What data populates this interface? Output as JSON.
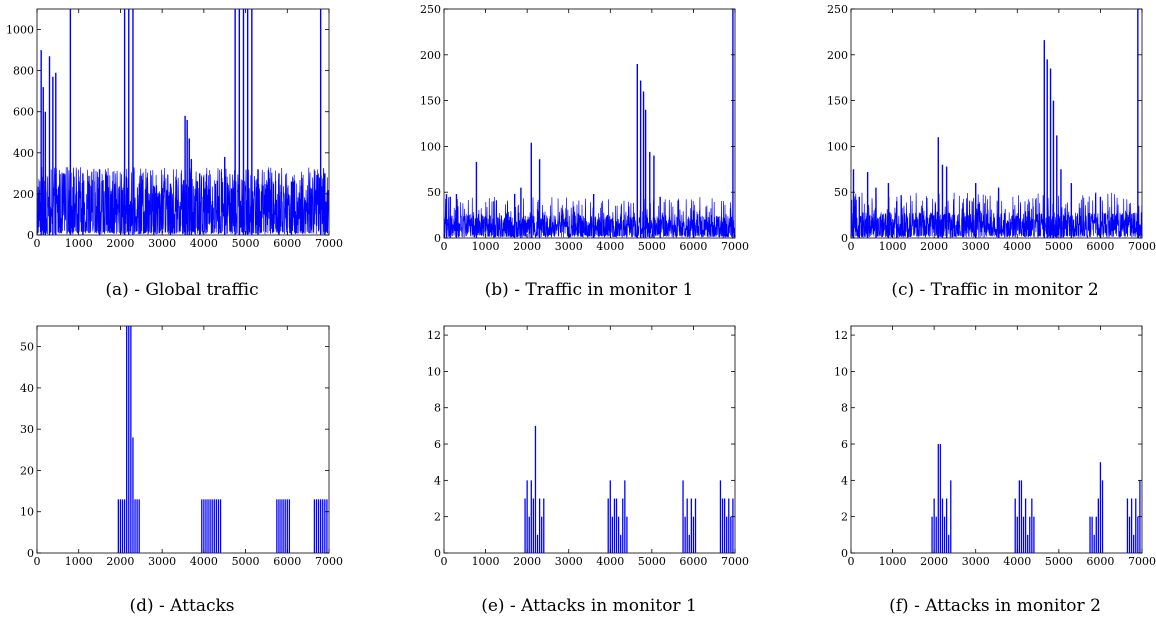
{
  "figure": {
    "colors": {
      "series": "#0000ff",
      "axis": "#000000",
      "background": "#ffffff"
    }
  },
  "chart_data": [
    {
      "id": "a",
      "caption": "(a) - Global traffic",
      "type": "line",
      "xlim": [
        0,
        7000
      ],
      "ylim": [
        0,
        1100
      ],
      "xticks": [
        0,
        1000,
        2000,
        3000,
        4000,
        5000,
        6000,
        7000
      ],
      "yticks": [
        0,
        200,
        400,
        600,
        800,
        1000
      ],
      "baseline": {
        "low": 20,
        "high": 290,
        "bursts_to": 330
      },
      "spikes": [
        [
          100,
          900
        ],
        [
          150,
          720
        ],
        [
          200,
          600
        ],
        [
          300,
          870
        ],
        [
          380,
          770
        ],
        [
          450,
          790
        ],
        [
          800,
          1100
        ],
        [
          1100,
          300
        ],
        [
          1500,
          320
        ],
        [
          2100,
          1100
        ],
        [
          2200,
          1100
        ],
        [
          2300,
          1100
        ],
        [
          2800,
          240
        ],
        [
          3200,
          250
        ],
        [
          3550,
          580
        ],
        [
          3600,
          560
        ],
        [
          3650,
          470
        ],
        [
          3700,
          370
        ],
        [
          3900,
          300
        ],
        [
          4500,
          380
        ],
        [
          4750,
          1100
        ],
        [
          4850,
          1100
        ],
        [
          4950,
          1100
        ],
        [
          5050,
          1100
        ],
        [
          5150,
          1100
        ],
        [
          5300,
          320
        ],
        [
          5800,
          300
        ],
        [
          6100,
          260
        ],
        [
          6800,
          1100
        ],
        [
          6900,
          300
        ]
      ],
      "grid": false,
      "legend": "none"
    },
    {
      "id": "b",
      "caption": "(b) - Traffic in monitor 1",
      "type": "line",
      "xlim": [
        0,
        7000
      ],
      "ylim": [
        0,
        250
      ],
      "xticks": [
        0,
        1000,
        2000,
        3000,
        4000,
        5000,
        6000,
        7000
      ],
      "yticks": [
        0,
        50,
        100,
        150,
        200,
        250
      ],
      "baseline": {
        "low": 3,
        "high": 25,
        "bursts_to": 45
      },
      "spikes": [
        [
          60,
          48
        ],
        [
          150,
          45
        ],
        [
          300,
          48
        ],
        [
          780,
          83
        ],
        [
          1200,
          40
        ],
        [
          1700,
          48
        ],
        [
          1850,
          55
        ],
        [
          2100,
          104
        ],
        [
          2300,
          86
        ],
        [
          3600,
          48
        ],
        [
          4650,
          190
        ],
        [
          4730,
          172
        ],
        [
          4800,
          160
        ],
        [
          4850,
          140
        ],
        [
          4950,
          94
        ],
        [
          5050,
          90
        ],
        [
          5200,
          45
        ],
        [
          6000,
          30
        ],
        [
          6950,
          250
        ]
      ],
      "grid": false,
      "legend": "none"
    },
    {
      "id": "c",
      "caption": "(c) - Traffic in monitor 2",
      "type": "line",
      "xlim": [
        0,
        7000
      ],
      "ylim": [
        0,
        250
      ],
      "xticks": [
        0,
        1000,
        2000,
        3000,
        4000,
        5000,
        6000,
        7000
      ],
      "yticks": [
        0,
        50,
        100,
        150,
        200,
        250
      ],
      "baseline": {
        "low": 3,
        "high": 28,
        "bursts_to": 50
      },
      "spikes": [
        [
          60,
          75
        ],
        [
          200,
          45
        ],
        [
          400,
          72
        ],
        [
          600,
          55
        ],
        [
          900,
          60
        ],
        [
          1100,
          40
        ],
        [
          2100,
          110
        ],
        [
          2200,
          80
        ],
        [
          2300,
          78
        ],
        [
          3000,
          60
        ],
        [
          3550,
          55
        ],
        [
          4650,
          216
        ],
        [
          4720,
          195
        ],
        [
          4800,
          185
        ],
        [
          4870,
          150
        ],
        [
          4950,
          112
        ],
        [
          5050,
          75
        ],
        [
          5300,
          60
        ],
        [
          6000,
          45
        ],
        [
          6900,
          250
        ]
      ],
      "grid": false,
      "legend": "none"
    },
    {
      "id": "d",
      "caption": "(d) - Attacks",
      "type": "bar",
      "xlim": [
        0,
        7000
      ],
      "ylim": [
        0,
        55
      ],
      "xticks": [
        0,
        1000,
        2000,
        3000,
        4000,
        5000,
        6000,
        7000
      ],
      "yticks": [
        0,
        10,
        20,
        30,
        40,
        50
      ],
      "x": [
        1950,
        2000,
        2050,
        2100,
        2150,
        2200,
        2250,
        2300,
        2350,
        2400,
        2450,
        3950,
        4000,
        4050,
        4100,
        4150,
        4200,
        4250,
        4300,
        4350,
        4400,
        5750,
        5800,
        5850,
        5900,
        5950,
        6000,
        6050,
        6650,
        6700,
        6750,
        6800,
        6850,
        6900,
        6950
      ],
      "values": [
        13,
        13,
        13,
        13,
        55,
        55,
        55,
        28,
        13,
        13,
        13,
        13,
        13,
        13,
        13,
        13,
        13,
        13,
        13,
        13,
        13,
        13,
        13,
        13,
        13,
        13,
        13,
        13,
        13,
        13,
        13,
        13,
        13,
        13,
        13
      ],
      "grid": false,
      "legend": "none"
    },
    {
      "id": "e",
      "caption": "(e) - Attacks in monitor 1",
      "type": "bar",
      "xlim": [
        0,
        7000
      ],
      "ylim": [
        0,
        12.5
      ],
      "xticks": [
        0,
        1000,
        2000,
        3000,
        4000,
        5000,
        6000,
        7000
      ],
      "yticks": [
        0,
        2,
        4,
        6,
        8,
        10,
        12
      ],
      "x": [
        1950,
        2000,
        2050,
        2100,
        2150,
        2200,
        2250,
        2300,
        2350,
        2400,
        3950,
        4000,
        4050,
        4100,
        4150,
        4200,
        4250,
        4300,
        4350,
        4400,
        5750,
        5800,
        5850,
        5900,
        5950,
        6000,
        6050,
        6650,
        6700,
        6750,
        6800,
        6850,
        6900,
        6950
      ],
      "values": [
        3,
        4,
        2,
        4,
        3,
        7,
        1,
        3,
        2,
        3,
        3,
        4,
        2,
        3,
        3,
        2,
        1,
        3,
        4,
        2,
        4,
        2,
        3,
        1,
        3,
        2,
        3,
        4,
        3,
        3,
        2,
        3,
        2,
        3
      ],
      "grid": false,
      "legend": "none"
    },
    {
      "id": "f",
      "caption": "(f) - Attacks in monitor 2",
      "type": "bar",
      "xlim": [
        0,
        7000
      ],
      "ylim": [
        0,
        12.5
      ],
      "xticks": [
        0,
        1000,
        2000,
        3000,
        4000,
        5000,
        6000,
        7000
      ],
      "yticks": [
        0,
        2,
        4,
        6,
        8,
        10,
        12
      ],
      "x": [
        1950,
        2000,
        2050,
        2100,
        2150,
        2200,
        2250,
        2300,
        2350,
        2400,
        3950,
        4000,
        4050,
        4100,
        4150,
        4200,
        4250,
        4300,
        4350,
        4400,
        5750,
        5800,
        5850,
        5900,
        5950,
        6000,
        6050,
        6650,
        6700,
        6750,
        6800,
        6850,
        6900,
        6950
      ],
      "values": [
        2,
        3,
        2,
        6,
        6,
        3,
        2,
        3,
        1,
        4,
        3,
        2,
        4,
        4,
        2,
        3,
        1,
        2,
        3,
        2,
        2,
        2,
        1,
        2,
        3,
        5,
        4,
        3,
        2,
        3,
        1,
        3,
        2,
        4
      ],
      "grid": false,
      "legend": "none"
    }
  ]
}
